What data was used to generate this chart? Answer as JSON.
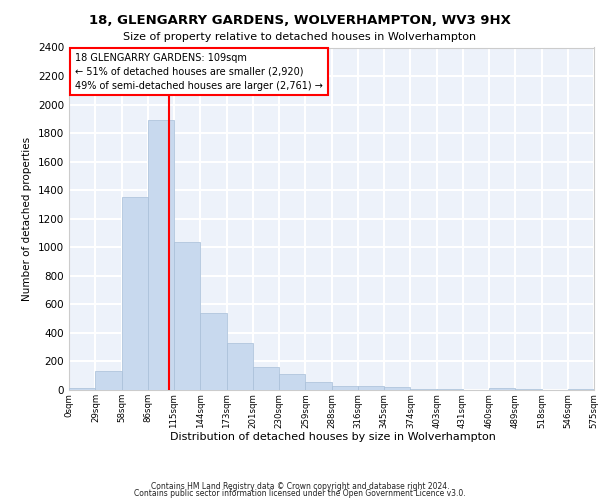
{
  "title1": "18, GLENGARRY GARDENS, WOLVERHAMPTON, WV3 9HX",
  "title2": "Size of property relative to detached houses in Wolverhampton",
  "xlabel": "Distribution of detached houses by size in Wolverhampton",
  "ylabel": "Number of detached properties",
  "bar_color": "#c8d9ee",
  "bar_edge_color": "#a8bfd8",
  "vline_color": "red",
  "vline_x": 109,
  "annotation_title": "18 GLENGARRY GARDENS: 109sqm",
  "annotation_line2": "← 51% of detached houses are smaller (2,920)",
  "annotation_line3": "49% of semi-detached houses are larger (2,761) →",
  "footer1": "Contains HM Land Registry data © Crown copyright and database right 2024.",
  "footer2": "Contains public sector information licensed under the Open Government Licence v3.0.",
  "bin_edges": [
    0,
    29,
    58,
    86,
    115,
    144,
    173,
    201,
    230,
    259,
    288,
    316,
    345,
    374,
    403,
    431,
    460,
    489,
    518,
    546,
    575
  ],
  "bin_labels": [
    "0sqm",
    "29sqm",
    "58sqm",
    "86sqm",
    "115sqm",
    "144sqm",
    "173sqm",
    "201sqm",
    "230sqm",
    "259sqm",
    "288sqm",
    "316sqm",
    "345sqm",
    "374sqm",
    "403sqm",
    "431sqm",
    "460sqm",
    "489sqm",
    "518sqm",
    "546sqm",
    "575sqm"
  ],
  "counts": [
    15,
    130,
    1350,
    1890,
    1040,
    540,
    330,
    160,
    110,
    55,
    30,
    25,
    20,
    10,
    5,
    3,
    15,
    5,
    3,
    10
  ],
  "ylim": [
    0,
    2400
  ],
  "yticks": [
    0,
    200,
    400,
    600,
    800,
    1000,
    1200,
    1400,
    1600,
    1800,
    2000,
    2200,
    2400
  ],
  "background_color": "#edf2fa",
  "grid_color": "white",
  "figsize": [
    6.0,
    5.0
  ],
  "dpi": 100
}
